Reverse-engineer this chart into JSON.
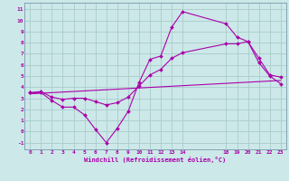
{
  "xlabel": "Windchill (Refroidissement éolien,°C)",
  "bg_color": "#cce8e8",
  "grid_color": "#aacccc",
  "line_color": "#aa00aa",
  "spine_color": "#7799aa",
  "xlim": [
    -0.5,
    23.5
  ],
  "ylim": [
    -1.6,
    11.6
  ],
  "xticks": [
    0,
    1,
    2,
    3,
    4,
    5,
    6,
    7,
    8,
    9,
    10,
    11,
    12,
    13,
    14,
    18,
    19,
    20,
    21,
    22,
    23
  ],
  "yticks": [
    -1,
    0,
    1,
    2,
    3,
    4,
    5,
    6,
    7,
    8,
    9,
    10,
    11
  ],
  "line1_x": [
    0,
    1,
    2,
    3,
    4,
    5,
    6,
    7,
    8,
    9,
    10,
    11,
    12,
    13,
    14,
    18,
    19,
    20,
    21,
    22,
    23
  ],
  "line1_y": [
    3.5,
    3.5,
    2.8,
    2.2,
    2.2,
    1.5,
    0.2,
    -1.0,
    0.3,
    1.8,
    4.4,
    6.5,
    6.8,
    9.4,
    10.8,
    9.7,
    8.5,
    8.1,
    6.2,
    5.0,
    4.3
  ],
  "line2_x": [
    0,
    1,
    2,
    3,
    4,
    5,
    6,
    7,
    8,
    9,
    10,
    11,
    12,
    13,
    14,
    18,
    19,
    20,
    21,
    22,
    23
  ],
  "line2_y": [
    3.5,
    3.6,
    3.1,
    2.9,
    3.0,
    3.0,
    2.7,
    2.4,
    2.6,
    3.1,
    4.1,
    5.1,
    5.6,
    6.6,
    7.1,
    7.9,
    7.9,
    8.1,
    6.6,
    5.1,
    4.9
  ],
  "line3_x": [
    0,
    23
  ],
  "line3_y": [
    3.4,
    4.6
  ]
}
